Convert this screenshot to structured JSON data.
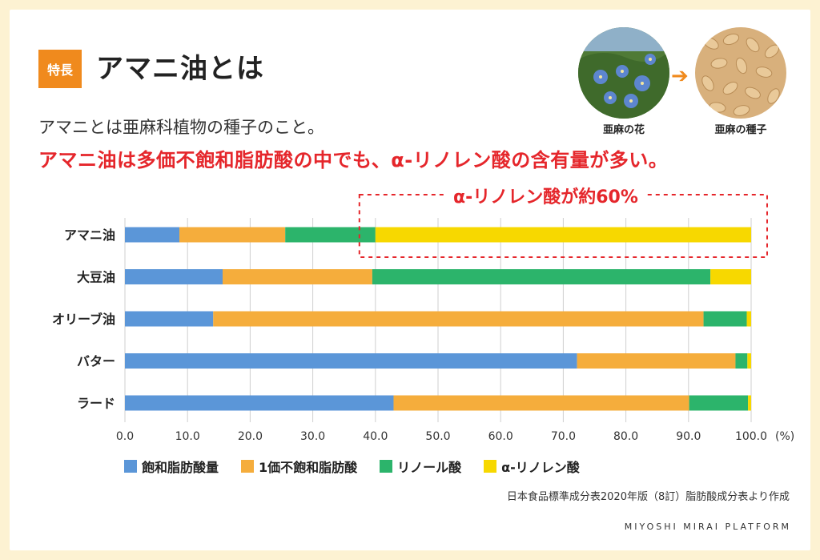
{
  "header": {
    "badge": "特長",
    "title": "アマニ油とは",
    "intro": "アマニとは亜麻科植物の種子のこと。",
    "highlight": "アマニ油は多価不飽和脂肪酸の中でも、α-リノレン酸の含有量が多い。"
  },
  "images": {
    "flower_label": "亜麻の花",
    "seed_label": "亜麻の種子",
    "arrow_icon": "right-arrow-icon"
  },
  "callout": {
    "label": "α-リノレン酸が約60%"
  },
  "colors": {
    "saturated": "#5b96d8",
    "mono": "#f5ad3c",
    "linoleic": "#2cb46b",
    "alpha": "#f7d800",
    "accent": "#e5262b",
    "badge": "#f08a1d"
  },
  "chart_data": {
    "type": "bar",
    "orientation": "horizontal",
    "stacked": true,
    "categories": [
      "アマニ油",
      "大豆油",
      "オリーブ油",
      "バター",
      "ラード"
    ],
    "series": [
      {
        "name": "飽和脂肪酸量",
        "values": [
          8.7,
          15.6,
          14.1,
          72.2,
          42.9
        ]
      },
      {
        "name": "1価不飽和脂肪酸",
        "values": [
          16.9,
          23.9,
          78.3,
          25.3,
          47.2
        ]
      },
      {
        "name": "リノール酸",
        "values": [
          14.4,
          54.0,
          6.9,
          1.9,
          9.4
        ]
      },
      {
        "name": "α-リノレン酸",
        "values": [
          60.0,
          6.5,
          0.7,
          0.6,
          0.5
        ]
      }
    ],
    "xlim": [
      0,
      100
    ],
    "xticks": [
      "0.0",
      "10.0",
      "20.0",
      "30.0",
      "40.0",
      "50.0",
      "60.0",
      "70.0",
      "80.0",
      "90.0",
      "100.0"
    ],
    "xunit": "(%)",
    "grid": true,
    "legend_position": "bottom"
  },
  "footer": {
    "source": "日本食品標準成分表2020年版（8訂）脂肪酸成分表より作成",
    "platform": "MIYOSHI MIRAI PLATFORM"
  }
}
